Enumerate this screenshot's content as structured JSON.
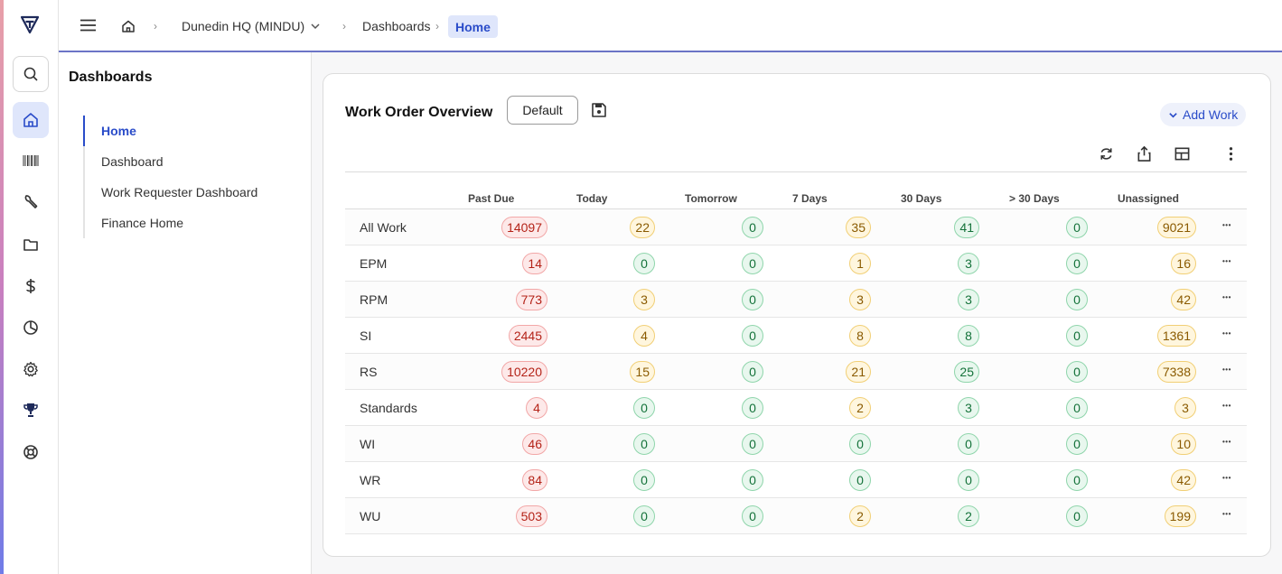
{
  "breadcrumb": {
    "site": "Dunedin HQ (MINDU)",
    "section": "Dashboards",
    "current": "Home"
  },
  "sidebar": {
    "title": "Dashboards",
    "items": [
      {
        "label": "Home",
        "active": true
      },
      {
        "label": "Dashboard",
        "active": false
      },
      {
        "label": "Work Requester Dashboard",
        "active": false
      },
      {
        "label": "Finance Home",
        "active": false
      }
    ]
  },
  "rail_icons": [
    "logo-icon",
    "search-icon",
    "home-icon",
    "barcode-icon",
    "wrench-icon",
    "folder-icon",
    "dollar-icon",
    "pie-chart-icon",
    "gear-icon",
    "trophy-icon",
    "lifebuoy-icon"
  ],
  "card": {
    "title": "Work Order Overview",
    "default_label": "Default",
    "add_work_label": "Add Work"
  },
  "table": {
    "columns": [
      "Past Due",
      "Today",
      "Tomorrow",
      "7 Days",
      "30 Days",
      "> 30 Days",
      "Unassigned"
    ],
    "rows": [
      {
        "label": "All Work",
        "values": [
          "14097",
          "22",
          "0",
          "35",
          "41",
          "0",
          "9021"
        ]
      },
      {
        "label": "EPM",
        "values": [
          "14",
          "0",
          "0",
          "1",
          "3",
          "0",
          "16"
        ]
      },
      {
        "label": "RPM",
        "values": [
          "773",
          "3",
          "0",
          "3",
          "3",
          "0",
          "42"
        ]
      },
      {
        "label": "SI",
        "values": [
          "2445",
          "4",
          "0",
          "8",
          "8",
          "0",
          "1361"
        ]
      },
      {
        "label": "RS",
        "values": [
          "10220",
          "15",
          "0",
          "21",
          "25",
          "0",
          "7338"
        ]
      },
      {
        "label": "Standards",
        "values": [
          "4",
          "0",
          "0",
          "2",
          "3",
          "0",
          "3"
        ]
      },
      {
        "label": "WI",
        "values": [
          "46",
          "0",
          "0",
          "0",
          "0",
          "0",
          "10"
        ]
      },
      {
        "label": "WR",
        "values": [
          "84",
          "0",
          "0",
          "0",
          "0",
          "0",
          "42"
        ]
      },
      {
        "label": "WU",
        "values": [
          "503",
          "0",
          "0",
          "2",
          "2",
          "0",
          "199"
        ]
      }
    ],
    "pill_colors": {
      "past_due": "#fde9e9",
      "warning": "#fff6de",
      "ok": "#e8f7ee"
    }
  },
  "accent_color": "#2a4cc9"
}
